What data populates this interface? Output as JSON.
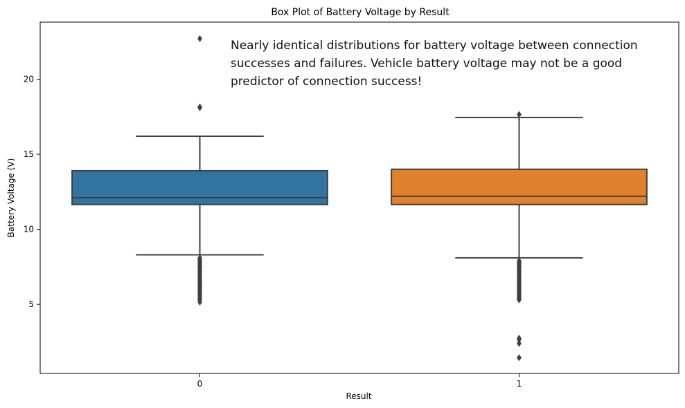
{
  "chart_data": {
    "type": "box",
    "title": "Box Plot of Battery Voltage by Result",
    "xlabel": "Result",
    "ylabel": "Battery Voltage (V)",
    "ylim": [
      0.4,
      23.8
    ],
    "yticks": [
      5,
      10,
      15,
      20
    ],
    "ytick_labels": [
      "5",
      "10",
      "15",
      "20"
    ],
    "grid": false,
    "categories": [
      "0",
      "1"
    ],
    "boxes": [
      {
        "category": "0",
        "color": "#3274a1",
        "whisker_low": 8.3,
        "q1": 11.65,
        "median": 12.1,
        "q3": 13.9,
        "whisker_high": 16.2,
        "outliers": [
          22.7,
          18.15,
          18.1,
          8.1,
          8.0,
          7.9,
          7.8,
          7.7,
          7.6,
          7.5,
          7.4,
          7.3,
          7.2,
          7.1,
          7.0,
          6.9,
          6.8,
          6.7,
          6.6,
          6.5,
          6.4,
          6.3,
          6.2,
          6.1,
          6.0,
          5.9,
          5.8,
          5.7,
          5.6,
          5.5,
          5.4,
          5.3,
          5.15
        ]
      },
      {
        "category": "1",
        "color": "#e1812c",
        "whisker_low": 8.1,
        "q1": 11.65,
        "median": 12.2,
        "q3": 14.0,
        "whisker_high": 17.45,
        "outliers": [
          17.65,
          7.9,
          7.8,
          7.7,
          7.6,
          7.5,
          7.4,
          7.3,
          7.2,
          7.1,
          7.0,
          6.9,
          6.8,
          6.7,
          6.6,
          6.5,
          6.4,
          6.3,
          6.2,
          6.1,
          6.0,
          5.9,
          5.8,
          5.7,
          5.6,
          5.5,
          5.4,
          5.3,
          2.75,
          2.65,
          2.4,
          1.45
        ]
      }
    ],
    "annotation": {
      "lines": [
        "Nearly identical distributions for battery voltage between connection",
        "successes and failures. Vehicle battery voltage may not be a good",
        "predictor of connection success!"
      ]
    }
  }
}
